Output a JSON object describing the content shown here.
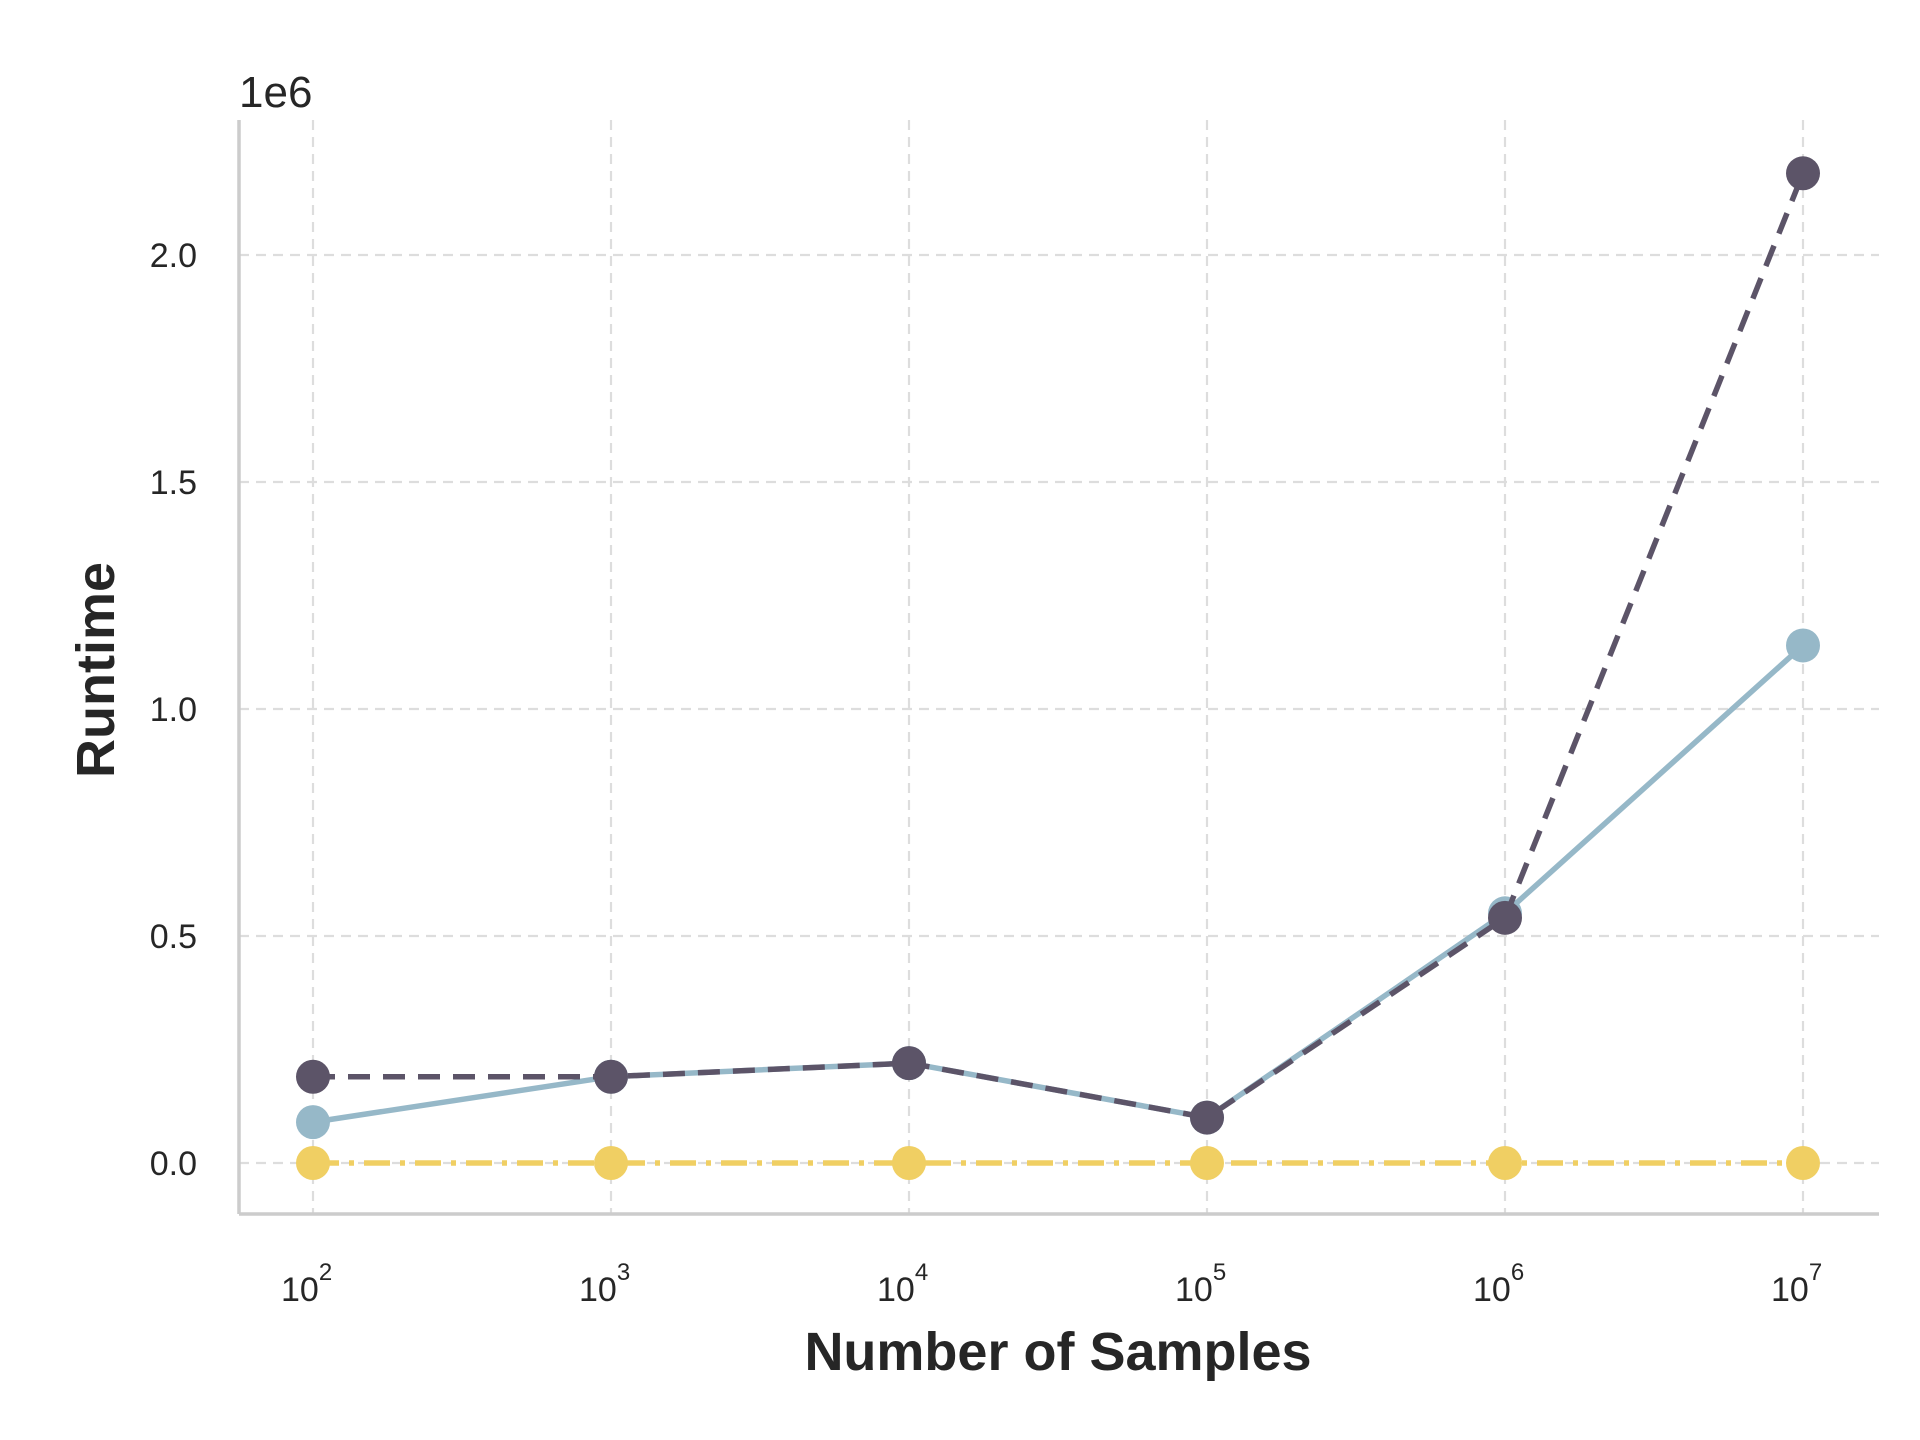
{
  "chart_data": {
    "type": "line",
    "xscale": "log",
    "x": [
      100,
      1000,
      10000,
      100000,
      1000000,
      10000000
    ],
    "x_tick_labels": [
      {
        "base": "10",
        "exp": "2"
      },
      {
        "base": "10",
        "exp": "3"
      },
      {
        "base": "10",
        "exp": "4"
      },
      {
        "base": "10",
        "exp": "5"
      },
      {
        "base": "10",
        "exp": "6"
      },
      {
        "base": "10",
        "exp": "7"
      }
    ],
    "y_ticks": [
      0.0,
      0.5,
      1.0,
      1.5,
      2.0
    ],
    "y_tick_labels": [
      "0.0",
      "0.5",
      "1.0",
      "1.5",
      "2.0"
    ],
    "y_offset_label": "1e6",
    "ylim": [
      -0.11,
      2.3
    ],
    "xlabel": "Number of Samples",
    "ylabel": "Runtime",
    "grid": true,
    "legend": "none",
    "series": [
      {
        "values": [
          0.09,
          0.19,
          0.22,
          0.1,
          0.55,
          1.14
        ],
        "color": "#96b8c8",
        "line_style": "solid",
        "marker": "circle"
      },
      {
        "values": [
          0.19,
          0.19,
          0.22,
          0.1,
          0.54,
          2.18
        ],
        "color": "#5c5468",
        "line_style": "dashed",
        "marker": "circle"
      },
      {
        "values": [
          0.0,
          0.0,
          0.0,
          0.0,
          0.0,
          0.0
        ],
        "color": "#f0cf63",
        "line_style": "dashdot",
        "marker": "circle"
      }
    ]
  }
}
